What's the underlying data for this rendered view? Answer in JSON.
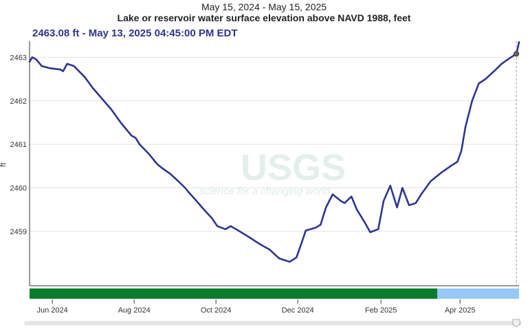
{
  "header": {
    "date_range": "May 15, 2024 - May 15, 2025",
    "title": "Lake or reservoir water surface elevation above NAVD 1988, feet"
  },
  "hover": {
    "readout": "2463.08 ft - May 13, 2025 04:45:00 PM EDT"
  },
  "watermark": {
    "logo_text": "USGS",
    "tagline": "science for a changing world"
  },
  "colors": {
    "line": "#2c3590",
    "approved": "#0a7d2c",
    "provisional": "#97c9f7",
    "grid": "#e3e3e3"
  },
  "chart_data": {
    "type": "line",
    "ylabel": "ft",
    "xlabel": "",
    "ylim": [
      2457.75,
      2463.37
    ],
    "yticks": [
      2459,
      2460,
      2461,
      2462,
      2463
    ],
    "x_ticks": [
      {
        "date": "2024-06-01",
        "label": "Jun 2024"
      },
      {
        "date": "2024-08-01",
        "label": "Aug 2024"
      },
      {
        "date": "2024-10-01",
        "label": "Oct 2024"
      },
      {
        "date": "2024-12-01",
        "label": "Dec 2024"
      },
      {
        "date": "2025-02-01",
        "label": "Feb 2025"
      },
      {
        "date": "2025-04-01",
        "label": "Apr 2025"
      }
    ],
    "xlim": [
      "2024-05-15",
      "2025-05-15"
    ],
    "approval_bands": [
      {
        "status": "approved",
        "start": "2024-05-15",
        "end": "2025-03-15"
      },
      {
        "status": "provisional",
        "start": "2025-03-15",
        "end": "2025-05-15"
      }
    ],
    "hover_point": {
      "date": "2025-05-13",
      "value": 2463.08
    },
    "series": [
      {
        "points": [
          [
            "2024-05-15",
            2462.9
          ],
          [
            "2024-05-17",
            2463.0
          ],
          [
            "2024-05-20",
            2462.95
          ],
          [
            "2024-05-24",
            2462.8
          ],
          [
            "2024-05-30",
            2462.75
          ],
          [
            "2024-06-07",
            2462.72
          ],
          [
            "2024-06-09",
            2462.68
          ],
          [
            "2024-06-12",
            2462.85
          ],
          [
            "2024-06-17",
            2462.8
          ],
          [
            "2024-06-25",
            2462.55
          ],
          [
            "2024-07-01",
            2462.3
          ],
          [
            "2024-07-08",
            2462.05
          ],
          [
            "2024-07-15",
            2461.8
          ],
          [
            "2024-07-22",
            2461.5
          ],
          [
            "2024-07-30",
            2461.2
          ],
          [
            "2024-08-02",
            2461.15
          ],
          [
            "2024-08-05",
            2461.0
          ],
          [
            "2024-08-12",
            2460.78
          ],
          [
            "2024-08-18",
            2460.55
          ],
          [
            "2024-08-22",
            2460.45
          ],
          [
            "2024-08-28",
            2460.32
          ],
          [
            "2024-09-03",
            2460.15
          ],
          [
            "2024-09-08",
            2460.0
          ],
          [
            "2024-09-10",
            2459.92
          ],
          [
            "2024-09-15",
            2459.75
          ],
          [
            "2024-09-22",
            2459.5
          ],
          [
            "2024-09-28",
            2459.3
          ],
          [
            "2024-10-02",
            2459.12
          ],
          [
            "2024-10-08",
            2459.05
          ],
          [
            "2024-10-12",
            2459.12
          ],
          [
            "2024-10-16",
            2459.05
          ],
          [
            "2024-10-25",
            2458.88
          ],
          [
            "2024-11-03",
            2458.7
          ],
          [
            "2024-11-10",
            2458.58
          ],
          [
            "2024-11-17",
            2458.38
          ],
          [
            "2024-11-25",
            2458.3
          ],
          [
            "2024-11-30",
            2458.4
          ],
          [
            "2024-12-04",
            2458.75
          ],
          [
            "2024-12-07",
            2459.02
          ],
          [
            "2024-12-14",
            2459.08
          ],
          [
            "2024-12-18",
            2459.15
          ],
          [
            "2024-12-22",
            2459.55
          ],
          [
            "2024-12-27",
            2459.85
          ],
          [
            "2025-01-02",
            2459.7
          ],
          [
            "2025-01-05",
            2459.65
          ],
          [
            "2025-01-10",
            2459.8
          ],
          [
            "2025-01-14",
            2459.5
          ],
          [
            "2025-01-20",
            2459.2
          ],
          [
            "2025-01-24",
            2458.98
          ],
          [
            "2025-01-30",
            2459.05
          ],
          [
            "2025-02-03",
            2459.7
          ],
          [
            "2025-02-08",
            2460.05
          ],
          [
            "2025-02-13",
            2459.55
          ],
          [
            "2025-02-17",
            2460.0
          ],
          [
            "2025-02-22",
            2459.6
          ],
          [
            "2025-02-27",
            2459.65
          ],
          [
            "2025-03-03",
            2459.85
          ],
          [
            "2025-03-10",
            2460.15
          ],
          [
            "2025-03-18",
            2460.35
          ],
          [
            "2025-03-25",
            2460.5
          ],
          [
            "2025-03-30",
            2460.6
          ],
          [
            "2025-04-02",
            2460.85
          ],
          [
            "2025-04-05",
            2461.4
          ],
          [
            "2025-04-10",
            2462.0
          ],
          [
            "2025-04-15",
            2462.4
          ],
          [
            "2025-04-20",
            2462.5
          ],
          [
            "2025-04-27",
            2462.7
          ],
          [
            "2025-05-02",
            2462.85
          ],
          [
            "2025-05-08",
            2462.98
          ],
          [
            "2025-05-13",
            2463.08
          ],
          [
            "2025-05-15",
            2463.35
          ]
        ]
      }
    ]
  }
}
